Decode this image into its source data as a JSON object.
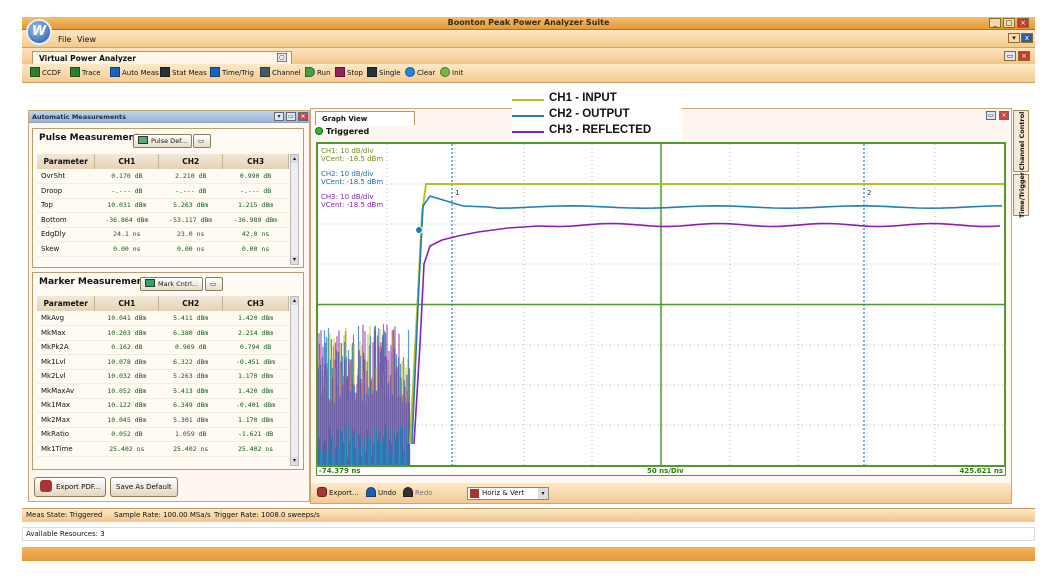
{
  "window": {
    "title": "Boonton Peak Power Analyzer Suite"
  },
  "menu": {
    "file": "File",
    "view": "View"
  },
  "doc": {
    "tab_title": "Virtual Power Analyzer"
  },
  "toolbar": {
    "items": [
      {
        "label": "CCDF",
        "color": "#2e7d32"
      },
      {
        "label": "Trace",
        "color": "#2e7d32"
      },
      {
        "label": "Auto Meas",
        "color": "#1565c0"
      },
      {
        "label": "Stat Meas",
        "color": "#263238"
      },
      {
        "label": "Time/Trig",
        "color": "#1565c0"
      },
      {
        "label": "Channel",
        "color": "#455a64"
      },
      {
        "label": "Run",
        "color": "#43a047"
      },
      {
        "label": "Stop",
        "color": "#8e2459"
      },
      {
        "label": "Single",
        "color": "#263238"
      },
      {
        "label": "Clear",
        "color": "#1e88e5"
      },
      {
        "label": "Init",
        "color": "#7cb342"
      }
    ]
  },
  "auto_panel": {
    "title": "Automatic Measurements",
    "pulse": {
      "title": "Pulse Measurements",
      "def_button": "Pulse Def...",
      "headers": [
        "Parameter",
        "CH1",
        "CH2",
        "CH3"
      ],
      "rows": [
        [
          "OvrSht",
          "0.170 dB",
          "2.210 dB",
          "0.990 dB"
        ],
        [
          "Droop",
          "-.--- dB",
          "-.--- dB",
          "-.--- dB"
        ],
        [
          "Top",
          "10.031 dBm",
          "5.263 dBm",
          "1.215 dBm"
        ],
        [
          "Bottom",
          "-36.864 dBm",
          "-53.117 dBm",
          "-36.989 dBm"
        ],
        [
          "EdgDly",
          "24.1 ns",
          "23.0 ns",
          "42.0 ns"
        ],
        [
          "Skew",
          "0.00 ns",
          "0.00 ns",
          "0.00 ns"
        ]
      ]
    },
    "marker": {
      "title": "Marker Measurements",
      "ctrl_button": "Mark Cntrl...",
      "headers": [
        "Parameter",
        "CH1",
        "CH2",
        "CH3"
      ],
      "rows": [
        [
          "MkAvg",
          "10.041 dBm",
          "5.411 dBm",
          "1.420 dBm"
        ],
        [
          "MkMax",
          "10.203 dBm",
          "6.380 dBm",
          "2.214 dBm"
        ],
        [
          "MkPk2A",
          "0.162 dB",
          "0.969 dB",
          "0.794 dB"
        ],
        [
          "Mk1Lvl",
          "10.078 dBm",
          "6.322 dBm",
          "-0.451 dBm"
        ],
        [
          "Mk2Lvl",
          "10.032 dBm",
          "5.263 dBm",
          "1.170 dBm"
        ],
        [
          "MkMaxAv",
          "10.052 dBm",
          "5.413 dBm",
          "1.420 dBm"
        ],
        [
          "Mk1Max",
          "10.122 dBm",
          "6.349 dBm",
          "-0.401 dBm"
        ],
        [
          "Mk2Max",
          "10.045 dBm",
          "5.301 dBm",
          "1.170 dBm"
        ],
        [
          "MkRatio",
          "0.052 dB",
          "1.059 dB",
          "-1.621 dB"
        ],
        [
          "Mk1Time",
          "25.402 ns",
          "25.402 ns",
          "25.402 ns"
        ]
      ]
    },
    "export_pdf": "Export PDF...",
    "save_default": "Save As Default"
  },
  "graph": {
    "tab": "Graph View",
    "status": "Triggered",
    "channels": [
      {
        "scale": "CH1: 10 dB/div",
        "vcent": "VCent: -18.5 dBm",
        "color": "#b5c21f"
      },
      {
        "scale": "CH2: 10 dB/div",
        "vcent": "VCent: -18.5 dBm",
        "color": "#1f7fb5"
      },
      {
        "scale": "CH3: 10 dB/div",
        "vcent": "VCent: -18.5 dBm",
        "color": "#8a1fb5"
      }
    ],
    "marker1": "1",
    "marker2": "2",
    "x_start": "-74.379 ns",
    "x_div": "50 ns/Div",
    "x_end": "425.621 ns",
    "footer": {
      "export": "Export...",
      "undo": "Undo",
      "redo": "Redo",
      "dropdown": "Horiz & Vert"
    }
  },
  "legend": {
    "items": [
      {
        "label": "CH1 - INPUT",
        "color": "#b5c21f"
      },
      {
        "label": "CH2 - OUTPUT",
        "color": "#1f7fb5"
      },
      {
        "label": "CH3 - REFLECTED",
        "color": "#8a1fb5"
      }
    ]
  },
  "side_tabs": {
    "channel_control": "Channel Control",
    "time_trigger": "Time/Trigger"
  },
  "status": {
    "meas_state": "Meas State: Triggered",
    "sample_rate": "Sample Rate: 100.00 MSa/s",
    "trigger_rate": "Trigger Rate: 1008.0 sweeps/s",
    "resources": "Available Resources: 3"
  }
}
